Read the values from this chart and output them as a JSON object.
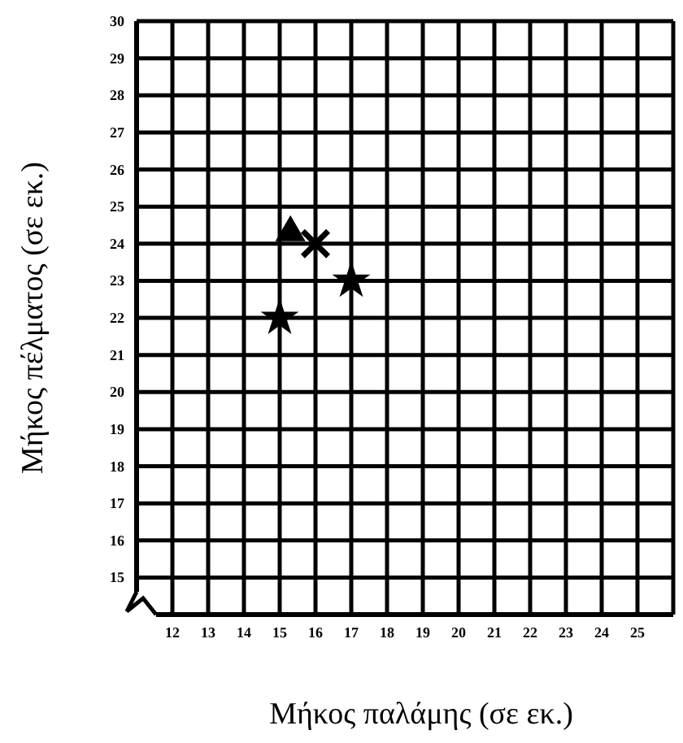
{
  "chart_data": {
    "type": "scatter",
    "xlabel": "Μήκος παλάμης (σε εκ.)",
    "ylabel": "Μήκος πέλματος (σε εκ.)",
    "xlim": [
      11,
      26
    ],
    "xticks": [
      12,
      13,
      14,
      15,
      16,
      17,
      18,
      19,
      20,
      21,
      22,
      23,
      24,
      25
    ],
    "ylim": [
      14,
      30
    ],
    "yticks": [
      15,
      16,
      17,
      18,
      19,
      20,
      21,
      22,
      23,
      24,
      25,
      26,
      27,
      28,
      29,
      30
    ],
    "grid": true,
    "series": [
      {
        "color": "#000000",
        "marker": "star",
        "x": [
          15,
          17
        ],
        "values": [
          22,
          23
        ]
      },
      {
        "color": "#000000",
        "marker": "cross",
        "x": [
          16
        ],
        "values": [
          24
        ]
      },
      {
        "color": "#000000",
        "marker": "triangle",
        "x": [
          15.3
        ],
        "values": [
          24.3
        ]
      }
    ]
  }
}
